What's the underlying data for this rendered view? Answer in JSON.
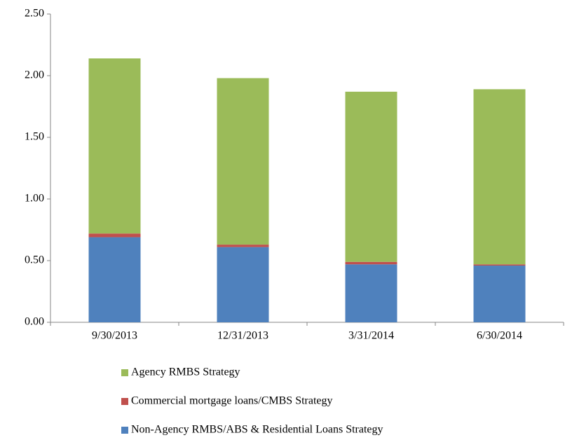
{
  "chart_data": {
    "type": "stacked_bar",
    "categories": [
      "9/30/2013",
      "12/31/2013",
      "3/31/2014",
      "6/30/2014"
    ],
    "series": [
      {
        "name": "Non-Agency RMBS/ABS & Residential Loans Strategy",
        "color": "#4f81bd",
        "values": [
          0.69,
          0.61,
          0.47,
          0.46
        ]
      },
      {
        "name": "Commercial mortgage loans/CMBS Strategy",
        "color": "#c0504d",
        "values": [
          0.03,
          0.02,
          0.02,
          0.01
        ]
      },
      {
        "name": "Agency RMBS Strategy",
        "color": "#9bbb59",
        "values": [
          1.42,
          1.35,
          1.38,
          1.42
        ]
      }
    ],
    "ylim": [
      0,
      2.5
    ],
    "yticks": [
      {
        "value": 0,
        "label": "0.00"
      },
      {
        "value": 0.5,
        "label": "0.50"
      },
      {
        "value": 1,
        "label": "1.00"
      },
      {
        "value": 1.5,
        "label": "1.50"
      },
      {
        "value": 2,
        "label": "2.00"
      },
      {
        "value": 2.5,
        "label": "2.50"
      }
    ],
    "grid": false
  }
}
